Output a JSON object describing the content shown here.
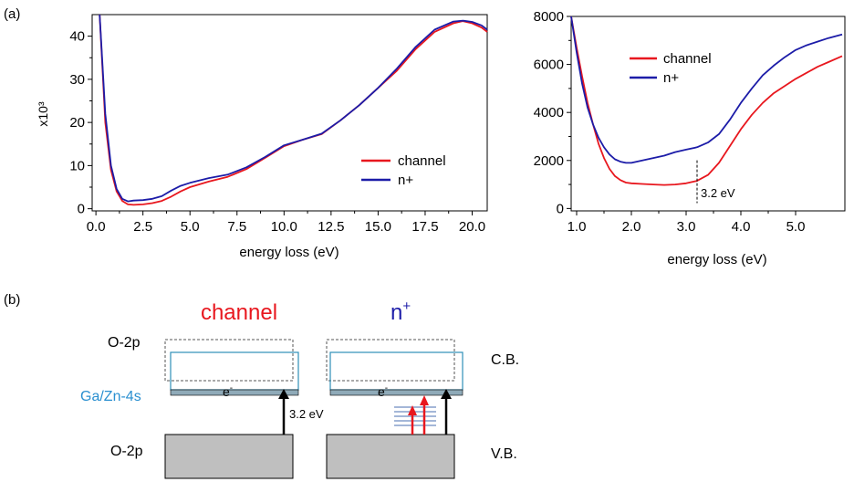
{
  "panel_labels": {
    "a": "(a)",
    "b": "(b)"
  },
  "colors": {
    "channel": "#e8171e",
    "nplus": "#1c1ca8",
    "ga_zn": "#2a8fd0",
    "cb_box": "#2e8fb8",
    "band_fill": "#bfbfbf",
    "thin_band": "#8faab8"
  },
  "chart_data": [
    {
      "type": "line",
      "title": "",
      "xlabel": "energy loss (eV)",
      "ylabel": "x10³",
      "xlim": [
        -0.2,
        20.8
      ],
      "ylim": [
        -0.5,
        45
      ],
      "xticks": [
        "0.0",
        "2.5",
        "5.0",
        "7.5",
        "10.0",
        "12.5",
        "15.0",
        "17.5",
        "20.0"
      ],
      "xtick_values": [
        0,
        2.5,
        5,
        7.5,
        10,
        12.5,
        15,
        17.5,
        20
      ],
      "yticks": [
        "0",
        "10",
        "20",
        "30",
        "40"
      ],
      "ytick_values": [
        0,
        10,
        20,
        30,
        40
      ],
      "grid": false,
      "legend_position": "center-right",
      "series": [
        {
          "name": "channel",
          "color": "#e8171e",
          "x": [
            0.2,
            0.5,
            0.8,
            1.1,
            1.4,
            1.7,
            2.0,
            2.5,
            3.0,
            3.5,
            4.0,
            4.5,
            5.0,
            6.0,
            7.0,
            8.0,
            9.0,
            10.0,
            11.0,
            12.0,
            13.0,
            14.0,
            15.0,
            16.0,
            17.0,
            18.0,
            19.0,
            19.5,
            20.0,
            20.5,
            20.8
          ],
          "y": [
            45,
            20,
            9,
            4,
            1.8,
            1.0,
            0.9,
            1.0,
            1.3,
            1.8,
            2.8,
            4.0,
            5.0,
            6.3,
            7.4,
            9.2,
            11.8,
            14.5,
            16.0,
            17.3,
            20.5,
            24.0,
            28.0,
            32.0,
            37.0,
            41.0,
            43.0,
            43.5,
            43.0,
            42.0,
            41.0
          ]
        },
        {
          "name": "n+",
          "color": "#1c1ca8",
          "x": [
            0.2,
            0.5,
            0.8,
            1.1,
            1.4,
            1.7,
            2.0,
            2.5,
            3.0,
            3.5,
            4.0,
            4.5,
            5.0,
            6.0,
            7.0,
            8.0,
            9.0,
            10.0,
            11.0,
            12.0,
            13.0,
            14.0,
            15.0,
            16.0,
            17.0,
            18.0,
            19.0,
            19.5,
            20.0,
            20.5,
            20.8
          ],
          "y": [
            45,
            22,
            10,
            4.6,
            2.3,
            1.7,
            1.9,
            2.0,
            2.3,
            2.9,
            4.2,
            5.3,
            6.0,
            7.1,
            7.9,
            9.6,
            12.0,
            14.7,
            16.0,
            17.4,
            20.5,
            24.0,
            28.0,
            32.5,
            37.5,
            41.5,
            43.4,
            43.6,
            43.3,
            42.5,
            41.5
          ]
        }
      ]
    },
    {
      "type": "line",
      "title": "",
      "xlabel": "energy loss (eV)",
      "ylabel": "",
      "xlim": [
        0.9,
        5.9
      ],
      "ylim": [
        -100,
        8000
      ],
      "xticks": [
        "1.0",
        "2.0",
        "3.0",
        "4.0",
        "5.0"
      ],
      "xtick_values": [
        1,
        2,
        3,
        4,
        5
      ],
      "yticks": [
        "0",
        "2000",
        "4000",
        "6000",
        "8000"
      ],
      "ytick_values": [
        0,
        2000,
        4000,
        6000,
        8000
      ],
      "grid": false,
      "legend_position": "top-center",
      "annotation": {
        "text": "3.2 eV",
        "x": 3.2
      },
      "series": [
        {
          "name": "channel",
          "color": "#e8171e",
          "x": [
            0.9,
            1.0,
            1.1,
            1.2,
            1.3,
            1.4,
            1.5,
            1.6,
            1.7,
            1.8,
            1.9,
            2.0,
            2.2,
            2.4,
            2.6,
            2.8,
            3.0,
            3.2,
            3.4,
            3.6,
            3.8,
            4.0,
            4.2,
            4.4,
            4.6,
            4.8,
            5.0,
            5.2,
            5.4,
            5.6,
            5.85
          ],
          "y": [
            8000,
            6700,
            5500,
            4400,
            3500,
            2700,
            2100,
            1650,
            1350,
            1180,
            1080,
            1050,
            1020,
            1000,
            980,
            1000,
            1050,
            1150,
            1400,
            1900,
            2600,
            3300,
            3900,
            4400,
            4800,
            5100,
            5400,
            5650,
            5900,
            6100,
            6350
          ]
        },
        {
          "name": "n+",
          "color": "#1c1ca8",
          "x": [
            0.9,
            1.0,
            1.1,
            1.2,
            1.3,
            1.4,
            1.5,
            1.6,
            1.7,
            1.8,
            1.9,
            2.0,
            2.2,
            2.4,
            2.6,
            2.8,
            3.0,
            3.2,
            3.4,
            3.6,
            3.8,
            4.0,
            4.2,
            4.4,
            4.6,
            4.8,
            5.0,
            5.2,
            5.4,
            5.6,
            5.85
          ],
          "y": [
            8000,
            6500,
            5200,
            4200,
            3500,
            2950,
            2550,
            2250,
            2050,
            1950,
            1900,
            1900,
            2000,
            2100,
            2200,
            2350,
            2450,
            2550,
            2750,
            3100,
            3700,
            4400,
            5000,
            5550,
            5950,
            6300,
            6600,
            6800,
            6950,
            7100,
            7250
          ]
        }
      ]
    }
  ],
  "diagram": {
    "titles": {
      "channel": "channel",
      "nplus_base": "n",
      "nplus_sup": "+"
    },
    "labels": {
      "o2p_top": "O-2p",
      "o2p_bottom": "O-2p",
      "ga_zn": "Ga/Zn-4s",
      "cb": "C.B.",
      "vb": "V.B.",
      "electron_base": "e",
      "electron_sup": "-",
      "gap": "3.2 eV"
    }
  }
}
